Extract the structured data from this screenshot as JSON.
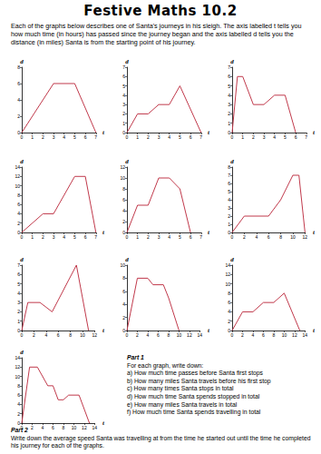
{
  "title": "Festive Maths 10.2",
  "intro": "Each of the graphs below describes one of Santa's journeys in his sleigh.  The axis labelled t tells you how much time (in hours) has passed since the journey began and the axis labelled d tells you the distance (in miles) Santa is from the starting point of his journey.",
  "chart_data": [
    {
      "type": "line",
      "x_label": "t",
      "y_label": "d",
      "color": "#c0394b",
      "grid": false,
      "x": [
        0,
        3,
        5,
        7
      ],
      "values": [
        0,
        6,
        6,
        0
      ],
      "xlim": [
        0,
        7
      ],
      "xticks": [
        0,
        1,
        2,
        3,
        4,
        5,
        6,
        7
      ],
      "ylim": [
        0,
        8
      ],
      "yticks": [
        0,
        2,
        4,
        6,
        8
      ]
    },
    {
      "type": "line",
      "x_label": "t",
      "y_label": "d",
      "color": "#c0394b",
      "grid": false,
      "x": [
        0,
        1,
        2,
        3,
        4,
        5,
        7
      ],
      "values": [
        0,
        2,
        2,
        3,
        3,
        5,
        0
      ],
      "xlim": [
        0,
        7
      ],
      "xticks": [
        0,
        1,
        2,
        3,
        4,
        5,
        6,
        7
      ],
      "ylim": [
        0,
        7
      ],
      "yticks": [
        0,
        1,
        2,
        3,
        4,
        5,
        6,
        7
      ]
    },
    {
      "type": "line",
      "x_label": "t",
      "y_label": "d",
      "color": "#c0394b",
      "grid": false,
      "x": [
        0,
        0.5,
        1,
        2,
        3,
        4,
        5,
        6
      ],
      "values": [
        0,
        6,
        6,
        3,
        3,
        4,
        4,
        0
      ],
      "xlim": [
        0,
        7
      ],
      "xticks": [
        0,
        1,
        2,
        3,
        4,
        5,
        6,
        7
      ],
      "ylim": [
        0,
        7
      ],
      "yticks": [
        0,
        1,
        2,
        3,
        4,
        5,
        6,
        7
      ]
    },
    {
      "type": "line",
      "x_label": "t",
      "y_label": "d",
      "color": "#c0394b",
      "grid": false,
      "x": [
        0,
        2,
        3,
        5,
        6,
        7
      ],
      "values": [
        0,
        4,
        4,
        12,
        12,
        0
      ],
      "xlim": [
        0,
        7
      ],
      "xticks": [
        0,
        1,
        2,
        3,
        4,
        5,
        6,
        7
      ],
      "ylim": [
        0,
        14
      ],
      "yticks": [
        0,
        2,
        4,
        6,
        8,
        10,
        12,
        14
      ]
    },
    {
      "type": "line",
      "x_label": "t",
      "y_label": "d",
      "color": "#c0394b",
      "grid": false,
      "x": [
        0,
        1,
        2,
        3,
        4,
        5,
        6
      ],
      "values": [
        0,
        5,
        5,
        10,
        10,
        8,
        0
      ],
      "xlim": [
        0,
        7
      ],
      "xticks": [
        0,
        1,
        2,
        3,
        4,
        5,
        6,
        7
      ],
      "ylim": [
        0,
        12
      ],
      "yticks": [
        0,
        2,
        4,
        6,
        8,
        10,
        12
      ]
    },
    {
      "type": "line",
      "x_label": "t",
      "y_label": "d",
      "color": "#c0394b",
      "grid": false,
      "x": [
        0,
        2,
        6,
        8,
        10,
        11,
        12
      ],
      "values": [
        0,
        2,
        2,
        4,
        7,
        7,
        0
      ],
      "xlim": [
        0,
        12
      ],
      "xticks": [
        0,
        2,
        4,
        6,
        8,
        10,
        12
      ],
      "ylim": [
        0,
        8
      ],
      "yticks": [
        0,
        1,
        2,
        3,
        4,
        5,
        6,
        7,
        8
      ]
    },
    {
      "type": "line",
      "x_label": "t",
      "y_label": "d",
      "color": "#c0394b",
      "grid": false,
      "x": [
        0,
        1,
        3,
        5,
        9,
        11
      ],
      "values": [
        0,
        3,
        3,
        2,
        7,
        0
      ],
      "xlim": [
        0,
        12
      ],
      "xticks": [
        0,
        2,
        4,
        6,
        8,
        10,
        12
      ],
      "ylim": [
        0,
        7
      ],
      "yticks": [
        0,
        1,
        2,
        3,
        4,
        5,
        6,
        7
      ]
    },
    {
      "type": "line",
      "x_label": "t",
      "y_label": "d",
      "color": "#c0394b",
      "grid": false,
      "x": [
        0,
        2,
        4,
        5,
        7,
        8,
        10
      ],
      "values": [
        0,
        8,
        8,
        7,
        7,
        5,
        0
      ],
      "xlim": [
        0,
        14
      ],
      "xticks": [
        0,
        2,
        4,
        6,
        8,
        10,
        12,
        14
      ],
      "ylim": [
        0,
        10
      ],
      "yticks": [
        0,
        2,
        4,
        6,
        8,
        10
      ]
    },
    {
      "type": "line",
      "x_label": "t",
      "y_label": "d",
      "color": "#c0394b",
      "grid": false,
      "x": [
        0,
        2,
        4,
        6,
        8,
        10,
        13
      ],
      "values": [
        0,
        4,
        4,
        6,
        6,
        8,
        0
      ],
      "xlim": [
        0,
        14
      ],
      "xticks": [
        0,
        2,
        4,
        6,
        8,
        10,
        12,
        14
      ],
      "ylim": [
        0,
        14
      ],
      "yticks": [
        0,
        2,
        4,
        6,
        8,
        10,
        12,
        14
      ]
    },
    {
      "type": "line",
      "x_label": "t",
      "y_label": "d",
      "color": "#c0394b",
      "grid": false,
      "x": [
        0,
        1.5,
        3,
        5,
        6,
        7,
        8,
        9,
        11,
        13
      ],
      "values": [
        0,
        12,
        12,
        8,
        8,
        5,
        5,
        6,
        6,
        0
      ],
      "xlim": [
        0,
        14
      ],
      "xticks": [
        0,
        2,
        4,
        6,
        8,
        10,
        12,
        14
      ],
      "ylim": [
        0,
        14
      ],
      "yticks": [
        0,
        2,
        4,
        6,
        8,
        10,
        12,
        14
      ]
    }
  ],
  "part1": {
    "heading": "Part 1",
    "instruction": "For each graph, write down:",
    "questions": [
      {
        "letter": "a)",
        "text": "How much time passes before Santa first stops"
      },
      {
        "letter": "b)",
        "text": "How many miles Santa travels before his first stop"
      },
      {
        "letter": "c)",
        "text": "How many times Santa stops in total"
      },
      {
        "letter": "d)",
        "text": "How much time Santa spends stopped in total"
      },
      {
        "letter": "e)",
        "text": "How many miles Santa travels in total"
      },
      {
        "letter": "f)",
        "text": "How much time Santa spends travelling in total"
      }
    ]
  },
  "part2": {
    "heading": "Part 2",
    "text": "Write down the average speed Santa was travelling at from the time he started out until the time he completed his journey for each of the graphs."
  }
}
